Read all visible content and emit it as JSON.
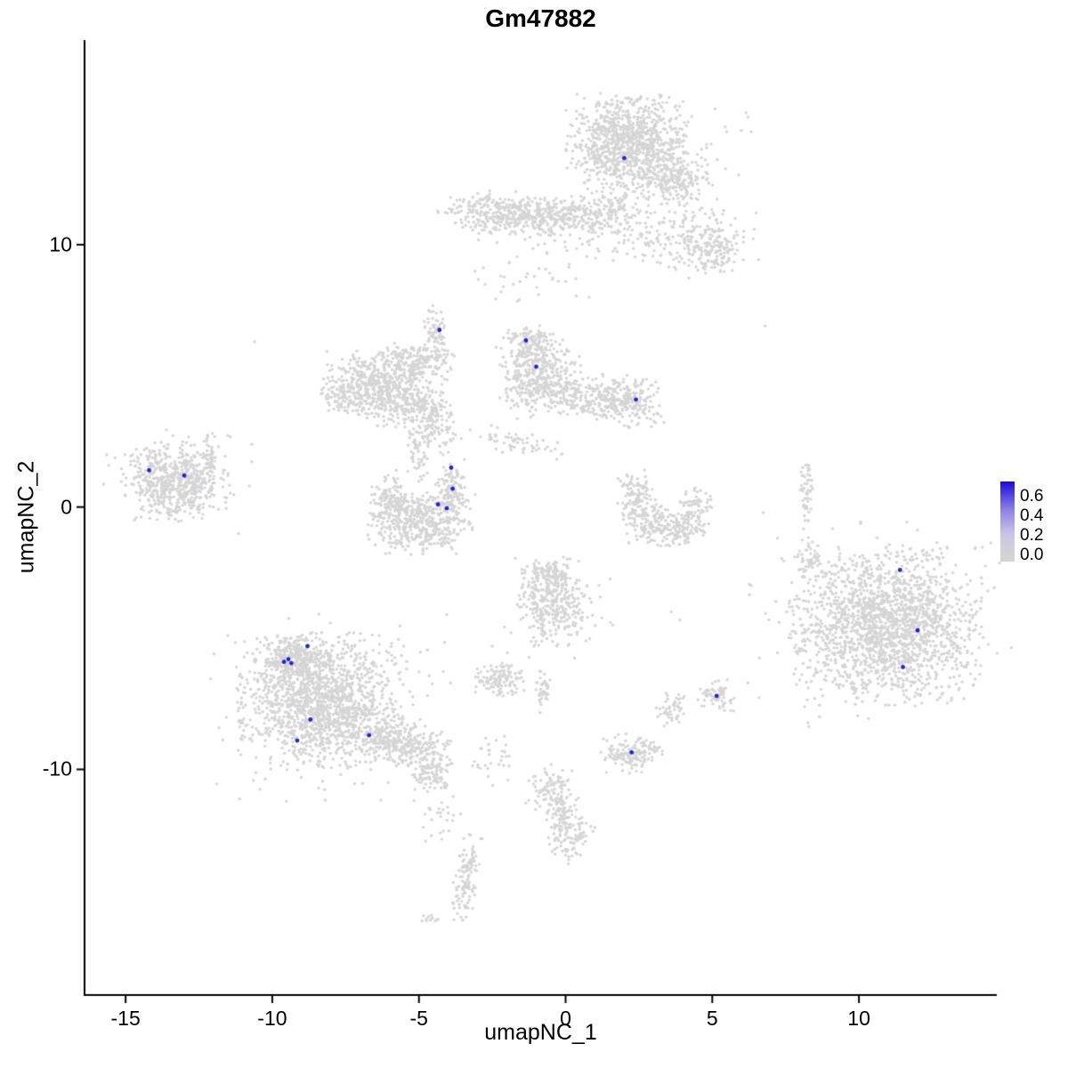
{
  "chart_data": {
    "type": "scatter",
    "title": "Gm47882",
    "xlabel": "umapNC_1",
    "ylabel": "umapNC_2",
    "xlim": [
      -16.4,
      14.7
    ],
    "ylim": [
      -18.6,
      17.8
    ],
    "x_ticks": [
      -15,
      -10,
      -5,
      0,
      5,
      10
    ],
    "y_ticks": [
      -10,
      0,
      10
    ],
    "grid": false,
    "point_color": "#d5d5d5",
    "highlight_color": "#2020dd",
    "axis_color": "#000000",
    "legend": {
      "labels": [
        "0.6",
        "0.4",
        "0.2",
        "0.0"
      ],
      "gradient": [
        "#1b0bd8",
        "#8d80e4",
        "#c9c4e6",
        "#d3d3d3"
      ],
      "position": "right"
    },
    "clusters": [
      {
        "cx": 2.1,
        "cy": 13.9,
        "sx": 0.95,
        "sy": 0.85,
        "n": 900,
        "rot": 0
      },
      {
        "cx": 3.7,
        "cy": 12.5,
        "sx": 0.6,
        "sy": 0.5,
        "n": 200,
        "rot": -20
      },
      {
        "cx": 3.2,
        "cy": 13.2,
        "sx": 1.5,
        "sy": 1.2,
        "n": 120,
        "rot": 0
      },
      {
        "cx": -0.6,
        "cy": 11.1,
        "sx": 1.35,
        "sy": 0.35,
        "n": 420,
        "rot": 0
      },
      {
        "cx": -2.6,
        "cy": 11.3,
        "sx": 0.8,
        "sy": 0.35,
        "n": 150,
        "rot": 0
      },
      {
        "cx": 4.2,
        "cy": 10.2,
        "sx": 1.1,
        "sy": 0.55,
        "n": 180,
        "rot": 0
      },
      {
        "cx": 5.0,
        "cy": 9.7,
        "sx": 0.4,
        "sy": 0.45,
        "n": 110,
        "rot": 0
      },
      {
        "cx": 0.5,
        "cy": 10.2,
        "sx": 1.6,
        "sy": 0.6,
        "n": 80,
        "rot": 0
      },
      {
        "cx": 1.8,
        "cy": 11.6,
        "sx": 0.5,
        "sy": 0.5,
        "n": 80,
        "rot": 0
      },
      {
        "cx": -1.2,
        "cy": 8.5,
        "sx": 1.2,
        "sy": 0.5,
        "n": 25,
        "rot": 0
      },
      {
        "cx": -4.4,
        "cy": 6.6,
        "sx": 0.17,
        "sy": 0.55,
        "n": 70,
        "rot": 10
      },
      {
        "cx": -6.4,
        "cy": 4.8,
        "sx": 0.8,
        "sy": 0.6,
        "n": 450,
        "rot": 0
      },
      {
        "cx": -5.1,
        "cy": 5.5,
        "sx": 0.6,
        "sy": 0.4,
        "n": 180,
        "rot": 0
      },
      {
        "cx": -5.6,
        "cy": 3.9,
        "sx": 0.7,
        "sy": 0.4,
        "n": 160,
        "rot": 0
      },
      {
        "cx": -4.4,
        "cy": 3.4,
        "sx": 0.3,
        "sy": 0.7,
        "n": 120,
        "rot": 15
      },
      {
        "cx": -7.6,
        "cy": 4.2,
        "sx": 0.4,
        "sy": 0.35,
        "n": 90,
        "rot": 0
      },
      {
        "cx": -0.9,
        "cy": 5.0,
        "sx": 0.7,
        "sy": 0.75,
        "n": 400,
        "rot": 0
      },
      {
        "cx": -1.2,
        "cy": 6.2,
        "sx": 0.45,
        "sy": 0.35,
        "n": 120,
        "rot": 0
      },
      {
        "cx": 0.9,
        "cy": 4.2,
        "sx": 0.8,
        "sy": 0.4,
        "n": 200,
        "rot": 0
      },
      {
        "cx": 2.2,
        "cy": 4.0,
        "sx": 0.55,
        "sy": 0.45,
        "n": 170,
        "rot": 0
      },
      {
        "cx": -1.8,
        "cy": 2.5,
        "sx": 0.8,
        "sy": 0.25,
        "n": 60,
        "rot": -15
      },
      {
        "cx": -13.3,
        "cy": 1.0,
        "sx": 0.85,
        "sy": 0.7,
        "n": 550,
        "rot": 0
      },
      {
        "cx": -12.1,
        "cy": 1.9,
        "sx": 0.12,
        "sy": 0.5,
        "n": 40,
        "rot": 0
      },
      {
        "cx": -13.2,
        "cy": 0.9,
        "sx": 1.3,
        "sy": 1.0,
        "n": 80,
        "rot": 0
      },
      {
        "cx": -4.9,
        "cy": -0.6,
        "sx": 0.85,
        "sy": 0.55,
        "n": 450,
        "rot": 0
      },
      {
        "cx": -6.0,
        "cy": 0.3,
        "sx": 0.3,
        "sy": 0.55,
        "n": 120,
        "rot": 0
      },
      {
        "cx": -3.9,
        "cy": 0.6,
        "sx": 0.25,
        "sy": 0.6,
        "n": 130,
        "rot": 0
      },
      {
        "cx": -5.0,
        "cy": 2.2,
        "sx": 0.2,
        "sy": 0.6,
        "n": 70,
        "rot": 0
      },
      {
        "cx": 2.4,
        "cy": 0.6,
        "sx": 0.3,
        "sy": 0.4,
        "n": 90,
        "rot": 0
      },
      {
        "cx": 2.7,
        "cy": -0.5,
        "sx": 0.4,
        "sy": 0.4,
        "n": 120,
        "rot": 0
      },
      {
        "cx": 3.7,
        "cy": -0.9,
        "sx": 0.5,
        "sy": 0.3,
        "n": 120,
        "rot": 0
      },
      {
        "cx": 4.4,
        "cy": -0.1,
        "sx": 0.3,
        "sy": 0.5,
        "n": 80,
        "rot": 0
      },
      {
        "cx": 8.2,
        "cy": 0.6,
        "sx": 0.12,
        "sy": 0.7,
        "n": 50,
        "rot": 0
      },
      {
        "cx": 10.9,
        "cy": -4.5,
        "sx": 1.5,
        "sy": 1.4,
        "n": 1700,
        "rot": 0
      },
      {
        "cx": 10.7,
        "cy": -4.3,
        "sx": 2.1,
        "sy": 1.9,
        "n": 250,
        "rot": 0
      },
      {
        "cx": 8.3,
        "cy": -2.0,
        "sx": 0.2,
        "sy": 0.5,
        "n": 40,
        "rot": 0
      },
      {
        "cx": -8.4,
        "cy": -7.4,
        "sx": 1.3,
        "sy": 1.2,
        "n": 1300,
        "rot": 0
      },
      {
        "cx": -9.2,
        "cy": -5.7,
        "sx": 0.5,
        "sy": 0.4,
        "n": 250,
        "rot": 0
      },
      {
        "cx": -5.6,
        "cy": -9.0,
        "sx": 0.9,
        "sy": 0.45,
        "n": 350,
        "rot": -25
      },
      {
        "cx": -8.0,
        "cy": -7.6,
        "sx": 1.9,
        "sy": 1.7,
        "n": 250,
        "rot": 0
      },
      {
        "cx": -4.6,
        "cy": -10.2,
        "sx": 0.4,
        "sy": 0.3,
        "n": 80,
        "rot": 0
      },
      {
        "cx": -0.4,
        "cy": -3.6,
        "sx": 0.6,
        "sy": 0.8,
        "n": 320,
        "rot": 0
      },
      {
        "cx": -0.6,
        "cy": -2.6,
        "sx": 0.3,
        "sy": 0.3,
        "n": 60,
        "rot": 0
      },
      {
        "cx": 0.0,
        "cy": -4.0,
        "sx": 1.0,
        "sy": 1.0,
        "n": 60,
        "rot": 0
      },
      {
        "cx": -2.3,
        "cy": -6.6,
        "sx": 0.4,
        "sy": 0.3,
        "n": 120,
        "rot": 0
      },
      {
        "cx": -0.75,
        "cy": -7.0,
        "sx": 0.12,
        "sy": 0.5,
        "n": 40,
        "rot": 0
      },
      {
        "cx": 3.6,
        "cy": -7.7,
        "sx": 0.25,
        "sy": 0.3,
        "n": 50,
        "rot": 0
      },
      {
        "cx": 5.1,
        "cy": -7.2,
        "sx": 0.3,
        "sy": 0.3,
        "n": 70,
        "rot": 0
      },
      {
        "cx": 2.3,
        "cy": -9.4,
        "sx": 0.5,
        "sy": 0.35,
        "n": 150,
        "rot": 0
      },
      {
        "cx": -0.5,
        "cy": -10.9,
        "sx": 0.4,
        "sy": 0.5,
        "n": 100,
        "rot": 0
      },
      {
        "cx": 0.2,
        "cy": -12.4,
        "sx": 0.35,
        "sy": 0.6,
        "n": 100,
        "rot": -20
      },
      {
        "cx": -0.2,
        "cy": -11.8,
        "sx": 0.2,
        "sy": 0.4,
        "n": 50,
        "rot": 0
      },
      {
        "cx": -3.4,
        "cy": -14.3,
        "sx": 0.2,
        "sy": 0.9,
        "n": 110,
        "rot": -8
      },
      {
        "cx": -4.6,
        "cy": -15.8,
        "sx": 0.15,
        "sy": 0.15,
        "n": 12,
        "rot": 0
      },
      {
        "cx": -4.2,
        "cy": -11.8,
        "sx": 0.35,
        "sy": 0.6,
        "n": 25,
        "rot": 0
      },
      {
        "cx": -2.4,
        "cy": -9.6,
        "sx": 0.4,
        "sy": 0.5,
        "n": 30,
        "rot": 0
      }
    ],
    "extra_points": [
      [
        -10.6,
        6.3
      ],
      [
        6.8,
        6.9
      ],
      [
        3.6,
        -4.0
      ],
      [
        3.9,
        -4.3
      ],
      [
        -2.5,
        -5.3
      ],
      [
        0.0,
        8.6
      ],
      [
        -1.3,
        8.9
      ],
      [
        -2.2,
        8.2
      ],
      [
        0.8,
        8.0
      ],
      [
        -12.2,
        2.7
      ]
    ],
    "highlighted_points": [
      [
        2.0,
        13.3
      ],
      [
        -4.3,
        6.75
      ],
      [
        -1.35,
        6.35
      ],
      [
        -1.0,
        5.35
      ],
      [
        2.4,
        4.1
      ],
      [
        -14.2,
        1.4
      ],
      [
        -13.0,
        1.2
      ],
      [
        -3.9,
        1.5
      ],
      [
        -3.85,
        0.7
      ],
      [
        -4.35,
        0.1
      ],
      [
        -4.05,
        -0.05
      ],
      [
        11.4,
        -2.4
      ],
      [
        12.0,
        -4.7
      ],
      [
        11.5,
        -6.1
      ],
      [
        -9.6,
        -5.9
      ],
      [
        -9.45,
        -5.8
      ],
      [
        -9.35,
        -5.95
      ],
      [
        -8.8,
        -5.3
      ],
      [
        -8.7,
        -8.1
      ],
      [
        -9.15,
        -8.9
      ],
      [
        -6.7,
        -8.7
      ],
      [
        5.15,
        -7.2
      ],
      [
        2.25,
        -9.35
      ]
    ]
  }
}
